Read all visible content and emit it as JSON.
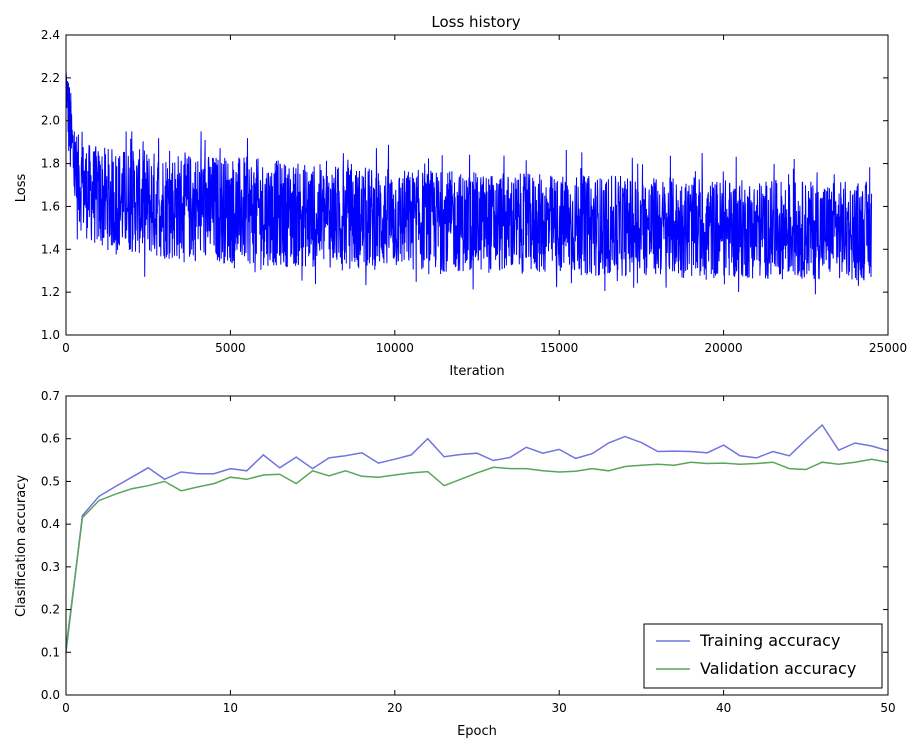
{
  "colors": {
    "loss_line": "#0000ff",
    "training": "#7373e0",
    "validation": "#5aa55a"
  },
  "chart_data": [
    {
      "type": "line",
      "title": "Loss history",
      "xlabel": "Iteration",
      "ylabel": "Loss",
      "xlim": [
        0,
        25000
      ],
      "ylim": [
        1.0,
        2.4
      ],
      "xticks": [
        0,
        5000,
        10000,
        15000,
        20000,
        25000
      ],
      "yticks": [
        1.0,
        1.2,
        1.4,
        1.6,
        1.8,
        2.0,
        2.2,
        2.4
      ],
      "xtick_labels": [
        "0",
        "5000",
        "10000",
        "15000",
        "20000",
        "25000"
      ],
      "ytick_labels": [
        "1.0",
        "1.2",
        "1.4",
        "1.6",
        "1.8",
        "2.0",
        "2.2",
        "2.4"
      ],
      "grid": false,
      "series": [
        {
          "num_points": 24500,
          "envelope": {
            "x": [
              0,
              100,
              300,
              600,
              1000,
              2000,
              3000,
              5000,
              7500,
              10000,
              12500,
              15000,
              17500,
              20000,
              22500,
              24500
            ],
            "upper": [
              2.3,
              2.2,
              1.95,
              1.9,
              1.88,
              1.87,
              1.86,
              1.84,
              1.8,
              1.78,
              1.76,
              1.75,
              1.74,
              1.73,
              1.72,
              1.72
            ],
            "lower": [
              2.1,
              1.75,
              1.52,
              1.45,
              1.4,
              1.38,
              1.35,
              1.33,
              1.31,
              1.3,
              1.29,
              1.28,
              1.27,
              1.26,
              1.26,
              1.25
            ],
            "peak_max": 1.95,
            "trough_min": 1.19
          }
        }
      ]
    },
    {
      "type": "line",
      "xlabel": "Epoch",
      "ylabel": "Clasification accuracy",
      "xlim": [
        0,
        50
      ],
      "ylim": [
        0.0,
        0.7
      ],
      "xticks": [
        0,
        10,
        20,
        30,
        40,
        50
      ],
      "yticks": [
        0.0,
        0.1,
        0.2,
        0.3,
        0.4,
        0.5,
        0.6,
        0.7
      ],
      "xtick_labels": [
        "0",
        "10",
        "20",
        "30",
        "40",
        "50"
      ],
      "ytick_labels": [
        "0.0",
        "0.1",
        "0.2",
        "0.3",
        "0.4",
        "0.5",
        "0.6",
        "0.7"
      ],
      "grid": false,
      "legend_position": "lower-right",
      "x": [
        0,
        1,
        2,
        3,
        4,
        5,
        6,
        7,
        8,
        9,
        10,
        11,
        12,
        13,
        14,
        15,
        16,
        17,
        18,
        19,
        20,
        21,
        22,
        23,
        24,
        25,
        26,
        27,
        28,
        29,
        30,
        31,
        32,
        33,
        34,
        35,
        36,
        37,
        38,
        39,
        40,
        41,
        42,
        43,
        44,
        45,
        46,
        47,
        48,
        49,
        50
      ],
      "series": [
        {
          "name": "Training accuracy",
          "values": [
            0.1,
            0.42,
            0.465,
            0.488,
            0.51,
            0.532,
            0.505,
            0.522,
            0.518,
            0.518,
            0.53,
            0.525,
            0.562,
            0.532,
            0.557,
            0.53,
            0.555,
            0.56,
            0.567,
            0.543,
            0.552,
            0.562,
            0.6,
            0.558,
            0.563,
            0.566,
            0.549,
            0.556,
            0.58,
            0.566,
            0.575,
            0.554,
            0.565,
            0.59,
            0.605,
            0.591,
            0.57,
            0.571,
            0.57,
            0.567,
            0.585,
            0.56,
            0.555,
            0.57,
            0.56,
            0.597,
            0.632,
            0.573,
            0.59,
            0.583,
            0.572
          ]
        },
        {
          "name": "Validation accuracy",
          "values": [
            0.11,
            0.415,
            0.455,
            0.47,
            0.483,
            0.49,
            0.5,
            0.478,
            0.487,
            0.495,
            0.51,
            0.505,
            0.515,
            0.517,
            0.495,
            0.525,
            0.513,
            0.525,
            0.512,
            0.51,
            0.515,
            0.52,
            0.523,
            0.49,
            0.505,
            0.52,
            0.533,
            0.53,
            0.53,
            0.525,
            0.522,
            0.524,
            0.53,
            0.525,
            0.535,
            0.538,
            0.54,
            0.538,
            0.545,
            0.542,
            0.543,
            0.54,
            0.542,
            0.545,
            0.53,
            0.528,
            0.545,
            0.54,
            0.545,
            0.552,
            0.545
          ]
        }
      ]
    }
  ]
}
